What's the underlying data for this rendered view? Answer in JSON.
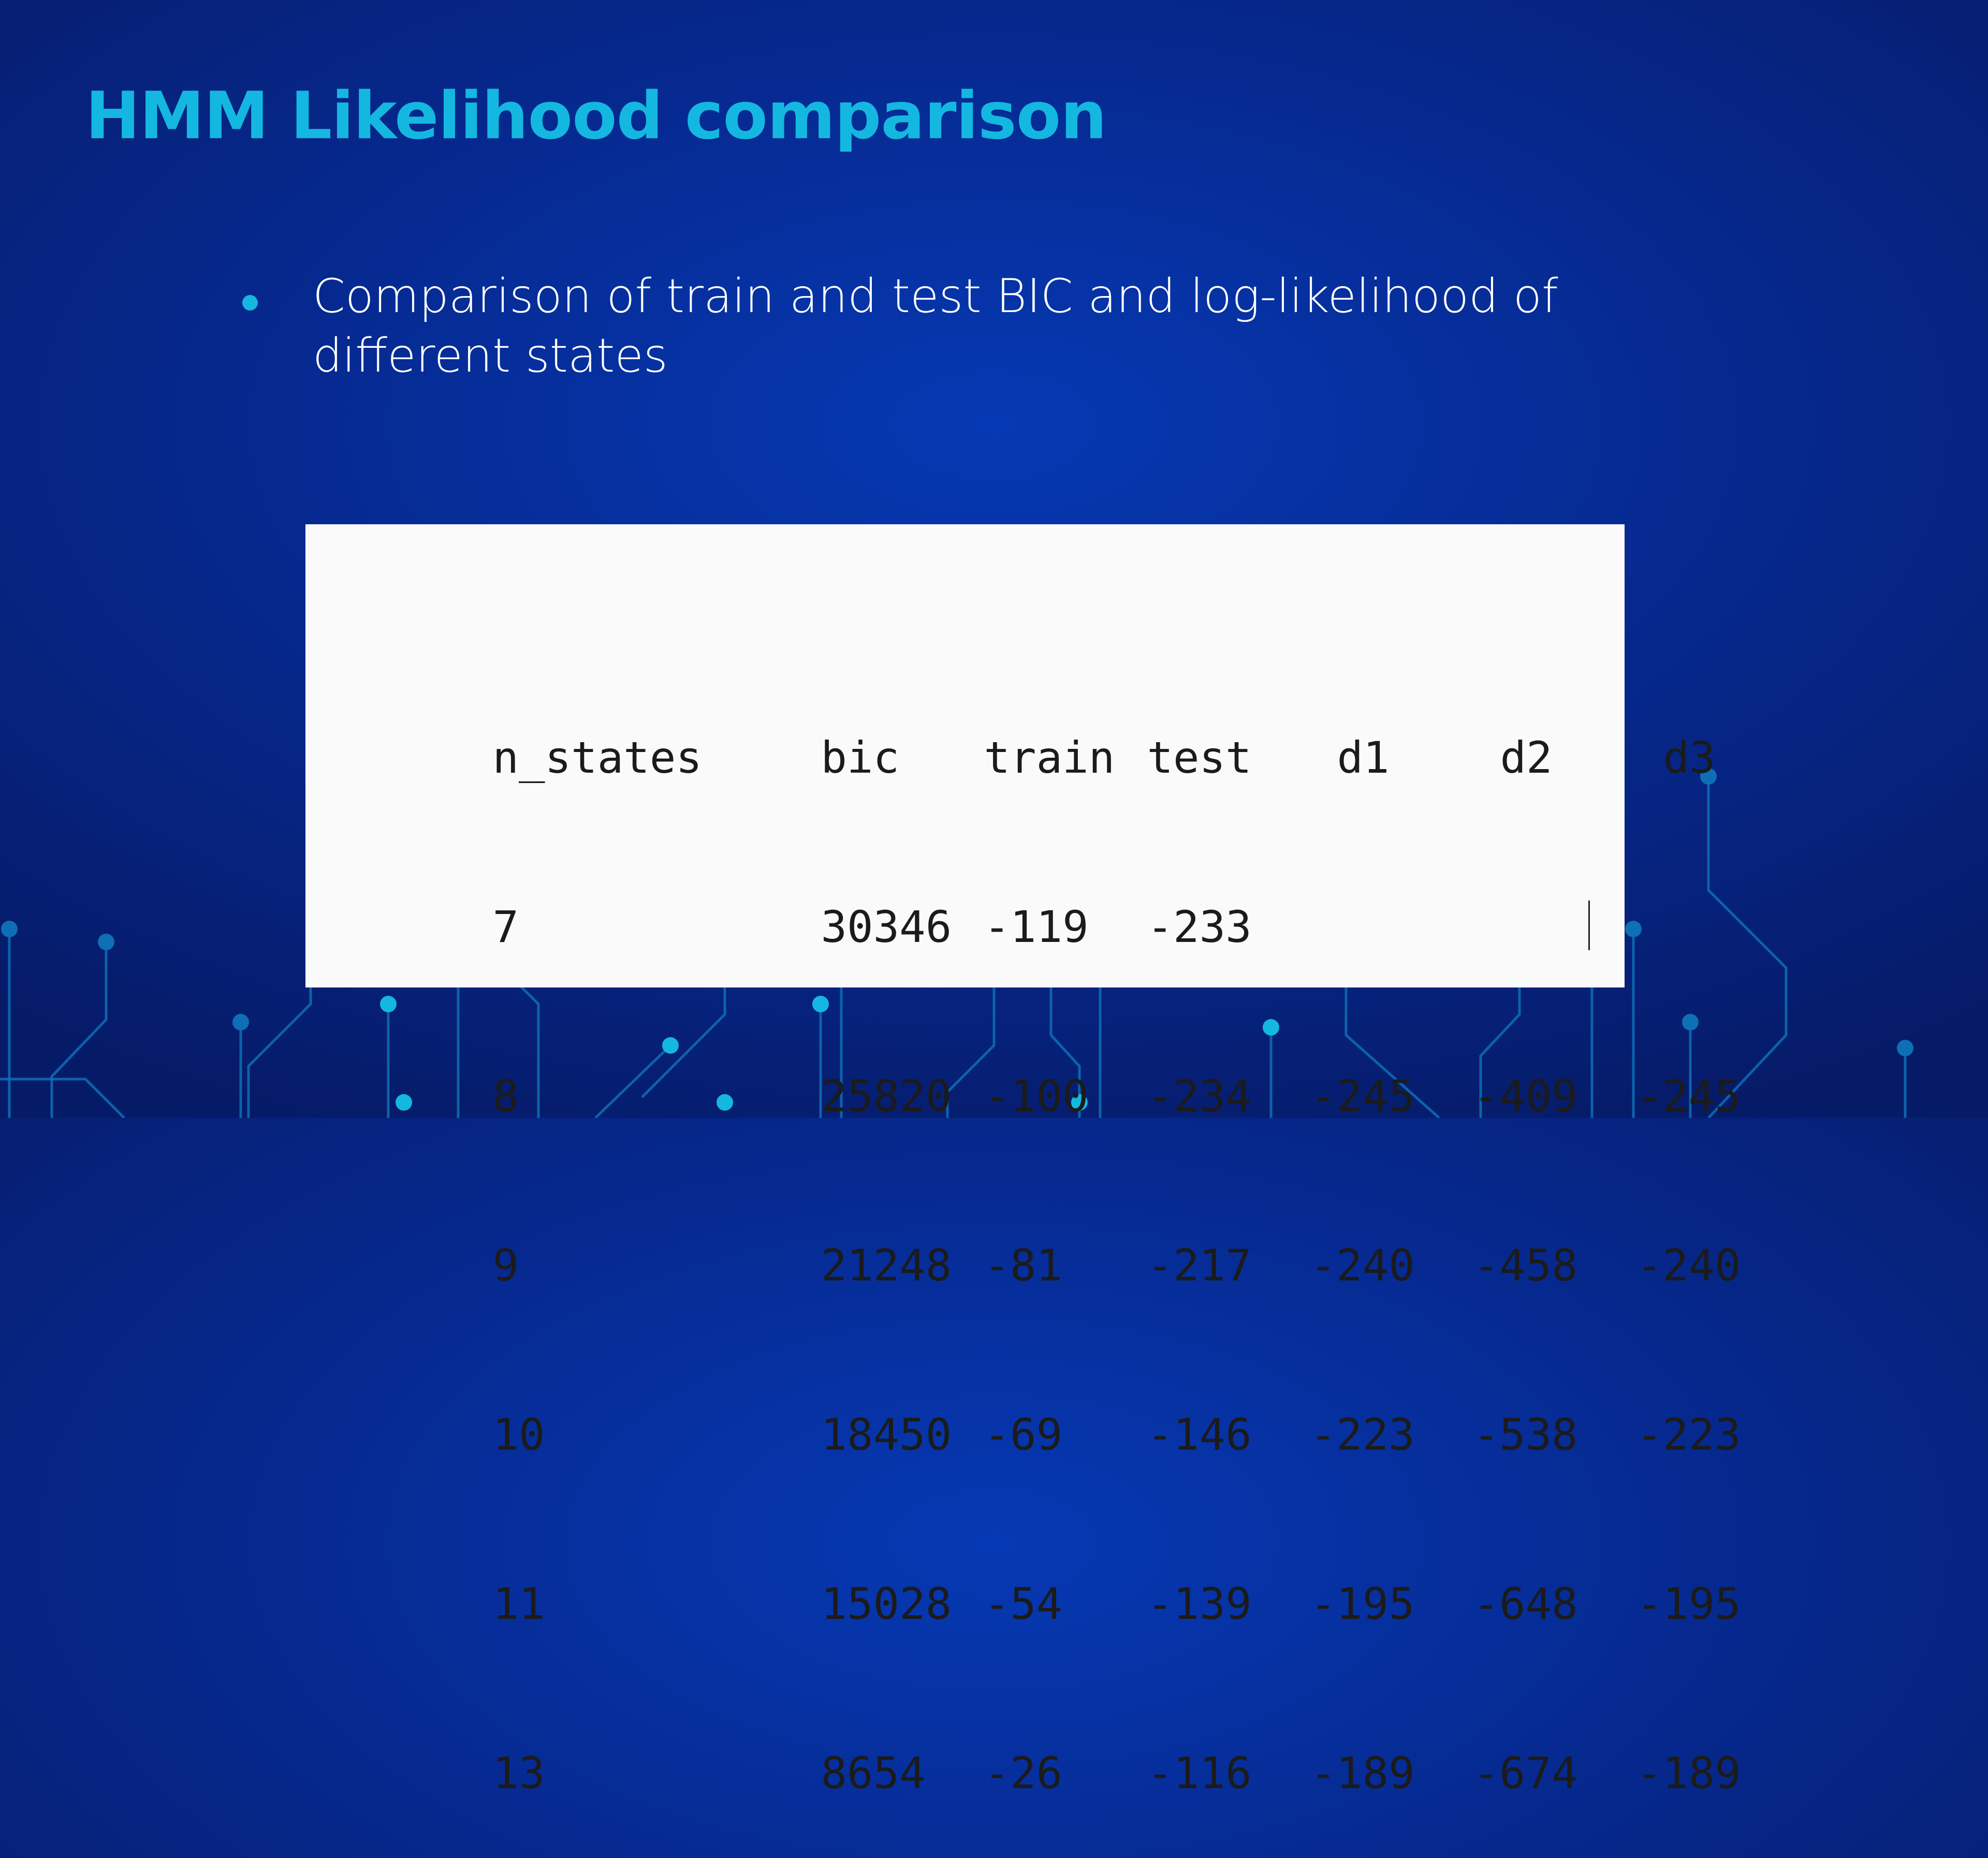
{
  "slide": {
    "title": "HMM Likelihood comparison",
    "bullet": "Comparison of train and test BIC and log-likelihood of different states",
    "colors": {
      "title": "#14b7e0",
      "background": "#0639b4",
      "table_bg": "#fafafb"
    }
  },
  "table": {
    "headers": [
      "n_states",
      "bic",
      "train",
      "test",
      "d1",
      "d2",
      "d3"
    ],
    "rows": [
      [
        "7",
        "30346",
        "-119",
        "-233",
        "",
        "",
        ""
      ],
      [
        "8",
        "25820",
        "-100",
        "-234",
        "-245",
        "-409",
        "-245"
      ],
      [
        "9",
        "21248",
        "-81",
        "-217",
        "-240",
        "-458",
        "-240"
      ],
      [
        "10",
        "18450",
        "-69",
        "-146",
        "-223",
        "-538",
        "-223"
      ],
      [
        "11",
        "15028",
        "-54",
        "-139",
        "-195",
        "-648",
        "-195"
      ],
      [
        "13",
        "8654",
        "-26",
        "-116",
        "-189",
        "-674",
        "-189"
      ]
    ]
  }
}
